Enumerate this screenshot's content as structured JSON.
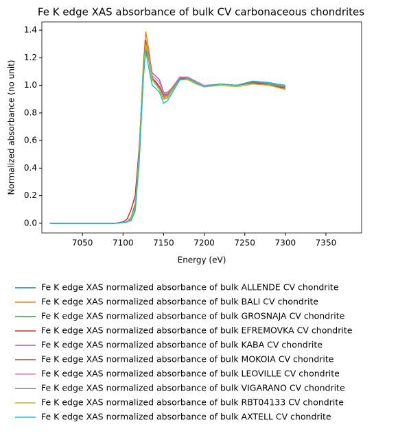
{
  "chart_data": {
    "type": "line",
    "title": "Fe K edge XAS absorbance of bulk CV carbonaceous chondrites",
    "xlabel": "Energy (eV)",
    "ylabel": "Normalized absorbance (no unit)",
    "xlim": [
      7000,
      7394
    ],
    "ylim": [
      -0.07,
      1.46
    ],
    "xticks": [
      7050,
      7100,
      7150,
      7200,
      7250,
      7300,
      7350
    ],
    "yticks": [
      {
        "value": 0,
        "label": "0.0"
      },
      0.2,
      0.4,
      0.6,
      0.8,
      {
        "value": 1,
        "label": "1.0"
      },
      1.2,
      1.4
    ],
    "legend": "below",
    "x": [
      7010,
      7090,
      7100,
      7105,
      7110,
      7115,
      7120,
      7125,
      7128,
      7132,
      7136,
      7140,
      7145,
      7150,
      7155,
      7160,
      7170,
      7180,
      7190,
      7200,
      7220,
      7240,
      7260,
      7280,
      7300
    ],
    "series": [
      {
        "name": "Fe K edge XAS normalized absorbance of bulk ALLENDE CV chondrite",
        "color": "#1f77b4",
        "values": [
          0,
          0,
          0.005,
          0.01,
          0.03,
          0.11,
          0.5,
          1.1,
          1.32,
          1.18,
          1.04,
          1.01,
          0.97,
          0.91,
          0.92,
          0.96,
          1.05,
          1.05,
          1.02,
          0.99,
          1.01,
          1.0,
          1.03,
          1.01,
          0.99
        ]
      },
      {
        "name": "Fe K edge XAS normalized absorbance of bulk BALI CV chondrite",
        "color": "#ff7f0e",
        "values": [
          0,
          0,
          0.005,
          0.01,
          0.03,
          0.12,
          0.52,
          1.15,
          1.39,
          1.25,
          1.06,
          1.02,
          0.97,
          0.9,
          0.91,
          0.96,
          1.06,
          1.06,
          1.02,
          0.99,
          1.01,
          1.0,
          1.02,
          1.0,
          0.98
        ]
      },
      {
        "name": "Fe K edge XAS normalized absorbance of bulk GROSNAJA CV chondrite",
        "color": "#2ca02c",
        "values": [
          0,
          0,
          0.005,
          0.01,
          0.03,
          0.12,
          0.5,
          1.1,
          1.3,
          1.2,
          1.05,
          1.02,
          0.97,
          0.91,
          0.92,
          0.96,
          1.05,
          1.05,
          1.02,
          0.99,
          1.01,
          1.0,
          1.02,
          1.0,
          0.98
        ]
      },
      {
        "name": "Fe K edge XAS normalized absorbance of bulk EFREMOVKA CV chondrite",
        "color": "#d62728",
        "values": [
          0,
          0,
          0.01,
          0.03,
          0.1,
          0.2,
          0.55,
          1.1,
          1.27,
          1.18,
          1.05,
          1.03,
          0.99,
          0.93,
          0.94,
          0.98,
          1.06,
          1.05,
          1.02,
          0.99,
          1.01,
          1.0,
          1.02,
          1.0,
          0.98
        ]
      },
      {
        "name": "Fe K edge XAS normalized absorbance of bulk KABA CV chondrite",
        "color": "#9467bd",
        "values": [
          0,
          0,
          0.005,
          0.01,
          0.03,
          0.11,
          0.48,
          1.08,
          1.3,
          1.22,
          1.09,
          1.07,
          1.04,
          0.95,
          0.95,
          0.98,
          1.05,
          1.05,
          1.02,
          0.99,
          1.01,
          1.0,
          1.03,
          1.01,
          0.99
        ]
      },
      {
        "name": "Fe K edge XAS normalized absorbance of bulk MOKOIA CV chondrite",
        "color": "#8c564b",
        "values": [
          0,
          0,
          0.005,
          0.01,
          0.04,
          0.14,
          0.52,
          1.12,
          1.33,
          1.2,
          1.05,
          1.02,
          0.98,
          0.92,
          0.93,
          0.97,
          1.05,
          1.05,
          1.02,
          0.99,
          1.01,
          1.0,
          1.025,
          1.01,
          0.99
        ]
      },
      {
        "name": "Fe K edge XAS normalized absorbance of bulk LEOVILLE CV chondrite",
        "color": "#e377c2",
        "values": [
          0,
          0,
          0.005,
          0.01,
          0.03,
          0.12,
          0.5,
          1.1,
          1.28,
          1.2,
          1.07,
          1.05,
          1.02,
          0.94,
          0.94,
          0.98,
          1.06,
          1.06,
          1.03,
          1.0,
          1.01,
          1.0,
          1.03,
          1.02,
          1.0
        ]
      },
      {
        "name": "Fe K edge XAS normalized absorbance of bulk VIGARANO CV chondrite",
        "color": "#7f7f7f",
        "values": [
          0,
          0,
          0.005,
          0.01,
          0.03,
          0.12,
          0.5,
          1.1,
          1.31,
          1.2,
          1.05,
          1.02,
          0.98,
          0.92,
          0.93,
          0.97,
          1.05,
          1.05,
          1.02,
          0.99,
          1.01,
          1.0,
          1.025,
          1.01,
          0.99
        ]
      },
      {
        "name": "Fe K edge XAS normalized absorbance of bulk RBT04133 CV chondrite",
        "color": "#bcbd22",
        "values": [
          0,
          0,
          0.005,
          0.01,
          0.03,
          0.12,
          0.5,
          1.1,
          1.3,
          1.19,
          1.04,
          1.01,
          0.97,
          0.91,
          0.92,
          0.96,
          1.04,
          1.04,
          1.01,
          0.99,
          1.0,
          0.99,
          1.01,
          1.0,
          0.97
        ]
      },
      {
        "name": "Fe K edge XAS normalized absorbance of bulk AXTELL CV chondrite",
        "color": "#17becf",
        "values": [
          0,
          0,
          0.005,
          0.01,
          0.02,
          0.09,
          0.45,
          1.05,
          1.25,
          1.12,
          1.0,
          0.98,
          0.95,
          0.87,
          0.89,
          0.94,
          1.04,
          1.05,
          1.02,
          0.99,
          1.01,
          1.0,
          1.03,
          1.02,
          1.0
        ]
      }
    ]
  }
}
